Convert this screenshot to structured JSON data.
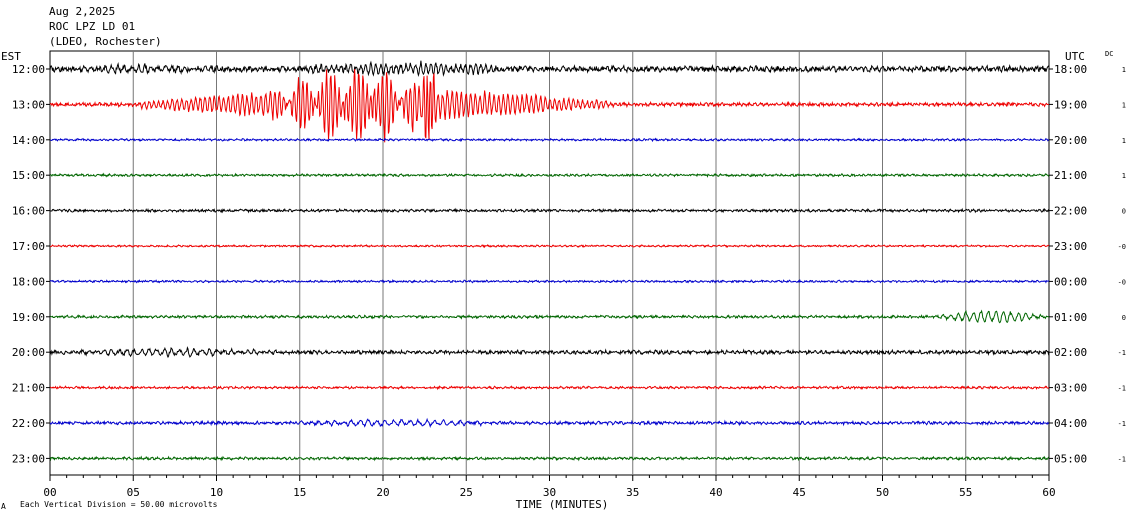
{
  "header": {
    "date": "Aug 2,2025",
    "station": "ROC LPZ LD 01",
    "network": "(LDEO, Rochester)"
  },
  "labels": {
    "left_timezone": "EST",
    "right_timezone": "UTC",
    "dc_label": "DC",
    "footer_note": "Each Vertical Division =   50.00 microvolts",
    "footer_mark": "A"
  },
  "chart_data": {
    "type": "line",
    "title": "",
    "xlabel": "TIME (MINUTES)",
    "ylabel": "",
    "xlim": [
      0,
      60
    ],
    "x_ticks": [
      "00",
      "05",
      "10",
      "15",
      "20",
      "25",
      "30",
      "35",
      "40",
      "45",
      "50",
      "55",
      "60"
    ],
    "grid": true,
    "trace_colors": [
      "#000000",
      "#ee0000",
      "#0000cc",
      "#006600"
    ],
    "series": [
      {
        "est": "12:00",
        "utc": "18:00",
        "dc": "1",
        "color": "#000000",
        "amplitude": 0.22
      },
      {
        "est": "13:00",
        "utc": "19:00",
        "dc": "1",
        "color": "#ee0000",
        "amplitude": 0.14
      },
      {
        "est": "14:00",
        "utc": "20:00",
        "dc": "1",
        "color": "#0000cc",
        "amplitude": 0.08
      },
      {
        "est": "15:00",
        "utc": "21:00",
        "dc": "1",
        "color": "#006600",
        "amplitude": 0.09
      },
      {
        "est": "16:00",
        "utc": "22:00",
        "dc": "0",
        "color": "#000000",
        "amplitude": 0.1
      },
      {
        "est": "17:00",
        "utc": "23:00",
        "dc": "-0",
        "color": "#ee0000",
        "amplitude": 0.07
      },
      {
        "est": "18:00",
        "utc": "00:00",
        "dc": "-0",
        "color": "#0000cc",
        "amplitude": 0.08
      },
      {
        "est": "19:00",
        "utc": "01:00",
        "dc": "0",
        "color": "#006600",
        "amplitude": 0.1
      },
      {
        "est": "20:00",
        "utc": "02:00",
        "dc": "-1",
        "color": "#000000",
        "amplitude": 0.14
      },
      {
        "est": "21:00",
        "utc": "03:00",
        "dc": "-1",
        "color": "#ee0000",
        "amplitude": 0.09
      },
      {
        "est": "22:00",
        "utc": "04:00",
        "dc": "-1",
        "color": "#0000cc",
        "amplitude": 0.12
      },
      {
        "est": "23:00",
        "utc": "05:00",
        "dc": "-1",
        "color": "#006600",
        "amplitude": 0.1
      }
    ],
    "events": [
      {
        "row": 0,
        "start_min": 0,
        "end_min": 11,
        "amp": 0.32,
        "period_min": 0.4
      },
      {
        "row": 0,
        "start_min": 14,
        "end_min": 29,
        "amp": 0.6,
        "period_min": 0.3
      },
      {
        "row": 1,
        "start_min": 4,
        "end_min": 35,
        "amp": 1.7,
        "period_min": 0.28
      },
      {
        "row": 1,
        "start_min": 13,
        "end_min": 23.5,
        "amp": 2.7,
        "period_min": 0.24
      },
      {
        "row": 1,
        "start_min": 22.3,
        "end_min": 23.2,
        "amp": 4.6,
        "period_min": 0.2
      },
      {
        "row": 7,
        "start_min": 53,
        "end_min": 60,
        "amp": 0.65,
        "period_min": 0.45
      },
      {
        "row": 8,
        "start_min": 0,
        "end_min": 14,
        "amp": 0.35,
        "period_min": 0.45
      },
      {
        "row": 10,
        "start_min": 14,
        "end_min": 28,
        "amp": 0.3,
        "period_min": 0.5
      }
    ]
  }
}
